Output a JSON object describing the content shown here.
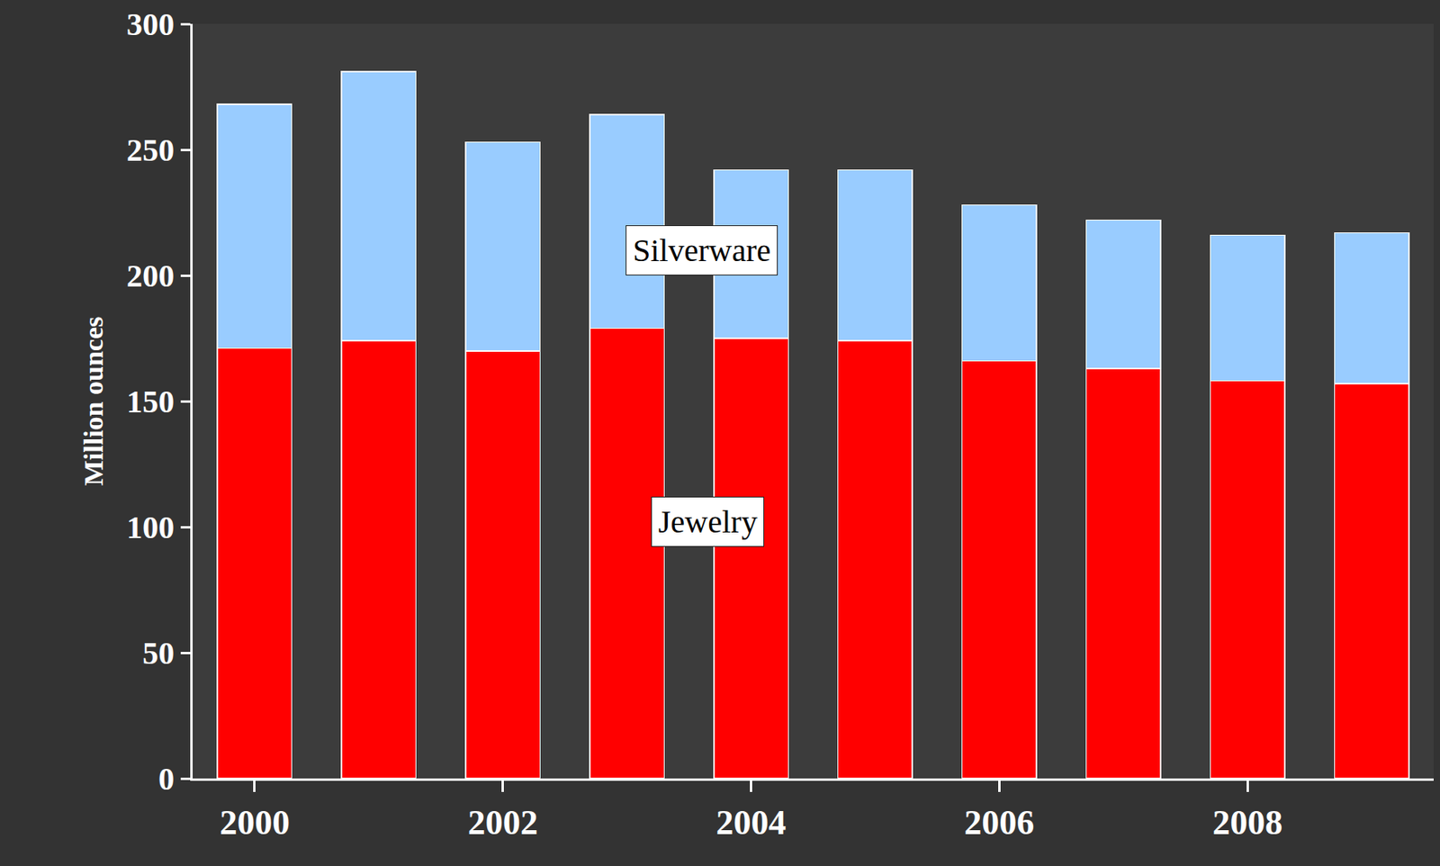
{
  "chart_data": {
    "type": "bar",
    "stacked": true,
    "y_label": "Million ounces",
    "categories": [
      "2000",
      null,
      "2002",
      null,
      "2004",
      null,
      "2006",
      null,
      "2008",
      null
    ],
    "series": [
      {
        "name": "Jewelry",
        "color": "#ff0000",
        "values": [
          171,
          174,
          170,
          179,
          175,
          174,
          166,
          163,
          158,
          157
        ]
      },
      {
        "name": "Silverware",
        "color": "#99ccff",
        "values": [
          97,
          107,
          83,
          85,
          67,
          68,
          62,
          59,
          58,
          60
        ]
      }
    ],
    "ylim": [
      0,
      300
    ],
    "yticks": [
      0,
      50,
      100,
      150,
      200,
      250,
      300
    ],
    "grid": false
  }
}
